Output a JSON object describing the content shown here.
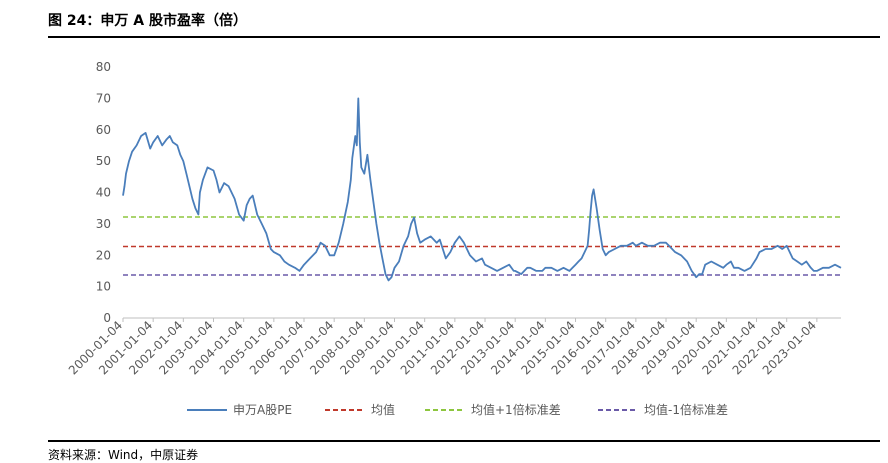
{
  "header": {
    "title": "图 24：申万 A 股市盈率（倍）"
  },
  "source": {
    "text": "资料来源：Wind，中原证券"
  },
  "colors": {
    "pe": "#4a7ebb",
    "mean": "#c0392b",
    "plus": "#8dc63f",
    "minus": "#6a5aa8",
    "axis": "#bfbfbf",
    "text": "#595959"
  },
  "chart_data": {
    "type": "line",
    "title": "",
    "xlabel": "",
    "ylabel": "",
    "ylim": [
      0,
      80
    ],
    "yticks": [
      0,
      10,
      20,
      30,
      40,
      50,
      60,
      70,
      80
    ],
    "xticks": [
      "2000-01-04",
      "2001-01-04",
      "2002-01-04",
      "2003-01-04",
      "2004-01-04",
      "2005-01-04",
      "2006-01-04",
      "2007-01-04",
      "2008-01-04",
      "2009-01-04",
      "2010-01-04",
      "2011-01-04",
      "2012-01-04",
      "2013-01-04",
      "2014-01-04",
      "2015-01-04",
      "2016-01-04",
      "2017-01-04",
      "2018-01-04",
      "2019-01-04",
      "2020-01-04",
      "2021-01-04",
      "2022-01-04",
      "2023-01-04"
    ],
    "x_range": [
      2000.0,
      2023.8
    ],
    "legend_position": "bottom",
    "series": [
      {
        "name": "申万A股PE",
        "style": "solid",
        "x": [
          2000.0,
          2000.05,
          2000.1,
          2000.2,
          2000.3,
          2000.45,
          2000.6,
          2000.75,
          2000.9,
          2001.0,
          2001.15,
          2001.3,
          2001.45,
          2001.55,
          2001.65,
          2001.8,
          2001.9,
          2002.0,
          2002.1,
          2002.2,
          2002.3,
          2002.4,
          2002.5,
          2002.55,
          2002.65,
          2002.8,
          2003.0,
          2003.1,
          2003.2,
          2003.35,
          2003.5,
          2003.6,
          2003.7,
          2003.85,
          2004.0,
          2004.1,
          2004.2,
          2004.3,
          2004.45,
          2004.6,
          2004.75,
          2004.9,
          2005.0,
          2005.2,
          2005.35,
          2005.5,
          2005.7,
          2005.85,
          2006.0,
          2006.2,
          2006.4,
          2006.55,
          2006.7,
          2006.85,
          2007.0,
          2007.15,
          2007.3,
          2007.45,
          2007.55,
          2007.6,
          2007.7,
          2007.75,
          2007.8,
          2007.85,
          2007.9,
          2008.0,
          2008.1,
          2008.2,
          2008.3,
          2008.4,
          2008.5,
          2008.6,
          2008.7,
          2008.8,
          2008.9,
          2009.0,
          2009.15,
          2009.3,
          2009.45,
          2009.55,
          2009.65,
          2009.75,
          2009.85,
          2010.0,
          2010.2,
          2010.4,
          2010.5,
          2010.6,
          2010.7,
          2010.85,
          2011.0,
          2011.15,
          2011.3,
          2011.5,
          2011.7,
          2011.9,
          2012.0,
          2012.2,
          2012.4,
          2012.6,
          2012.8,
          2012.95,
          2013.0,
          2013.2,
          2013.4,
          2013.5,
          2013.7,
          2013.9,
          2014.0,
          2014.2,
          2014.4,
          2014.6,
          2014.8,
          2014.9,
          2015.0,
          2015.1,
          2015.2,
          2015.3,
          2015.4,
          2015.45,
          2015.5,
          2015.55,
          2015.6,
          2015.7,
          2015.8,
          2015.9,
          2016.0,
          2016.1,
          2016.3,
          2016.5,
          2016.7,
          2016.9,
          2017.0,
          2017.2,
          2017.4,
          2017.6,
          2017.8,
          2018.0,
          2018.1,
          2018.3,
          2018.5,
          2018.7,
          2018.85,
          2019.0,
          2019.1,
          2019.2,
          2019.3,
          2019.5,
          2019.7,
          2019.9,
          2020.0,
          2020.15,
          2020.25,
          2020.4,
          2020.6,
          2020.8,
          2021.0,
          2021.1,
          2021.3,
          2021.5,
          2021.7,
          2021.85,
          2022.0,
          2022.2,
          2022.35,
          2022.5,
          2022.65,
          2022.8,
          2022.9,
          2023.0,
          2023.2,
          2023.4,
          2023.6,
          2023.8
        ],
        "values": [
          39,
          42,
          46,
          50,
          53,
          55,
          58,
          59,
          54,
          56,
          58,
          55,
          57,
          58,
          56,
          55,
          52,
          50,
          46,
          42,
          38,
          35,
          33,
          40,
          44,
          48,
          47,
          44,
          40,
          43,
          42,
          40,
          38,
          33,
          31,
          36,
          38,
          39,
          33,
          30,
          27,
          22,
          21,
          20,
          18,
          17,
          16,
          15,
          17,
          19,
          21,
          24,
          23,
          20,
          20,
          24,
          30,
          37,
          44,
          51,
          58,
          55,
          70,
          56,
          48,
          46,
          52,
          44,
          37,
          30,
          24,
          19,
          14,
          12,
          13,
          16,
          18,
          23,
          26,
          30,
          32,
          27,
          24,
          25,
          26,
          24,
          25,
          22,
          19,
          21,
          24,
          26,
          24,
          20,
          18,
          19,
          17,
          16,
          15,
          16,
          17,
          15,
          15,
          14,
          16,
          16,
          15,
          15,
          16,
          16,
          15,
          16,
          15,
          16,
          17,
          18,
          19,
          21,
          23,
          28,
          34,
          39,
          41,
          35,
          28,
          22,
          20,
          21,
          22,
          23,
          23,
          24,
          23,
          24,
          23,
          23,
          24,
          24,
          23,
          21,
          20,
          18,
          15,
          13,
          14,
          14,
          17,
          18,
          17,
          16,
          17,
          18,
          16,
          16,
          15,
          16,
          19,
          21,
          22,
          22,
          23,
          22,
          23,
          19,
          18,
          17,
          18,
          16,
          15,
          15,
          16,
          16,
          17,
          16
        ]
      },
      {
        "name": "均值",
        "style": "dashed",
        "values": [
          22.8
        ]
      },
      {
        "name": "均值+1倍标准差",
        "style": "dashed",
        "values": [
          32.2
        ]
      },
      {
        "name": "均值-1倍标准差",
        "style": "dashed",
        "values": [
          13.7
        ]
      }
    ]
  }
}
